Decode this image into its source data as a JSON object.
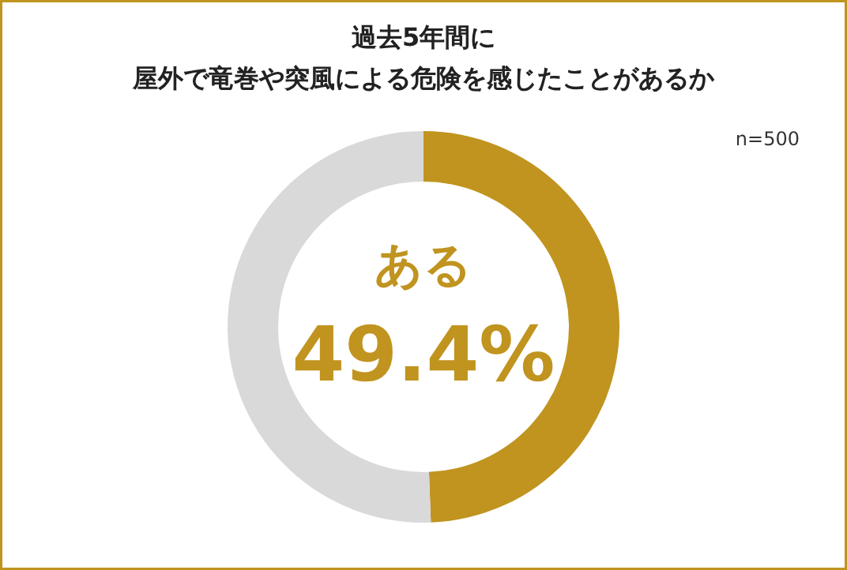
{
  "chart_data": {
    "type": "donut",
    "title": "過去5年間に",
    "subtitle": "屋外で竜巻や突風による危険を感じたことがあるか",
    "categories": [
      "ある",
      null
    ],
    "values": [
      49.4,
      50.6
    ],
    "colors": [
      "#c0941f",
      "#d9d9d9"
    ],
    "value_labels": [
      "49.4%",
      null
    ],
    "annotations": [
      "n=500"
    ]
  }
}
